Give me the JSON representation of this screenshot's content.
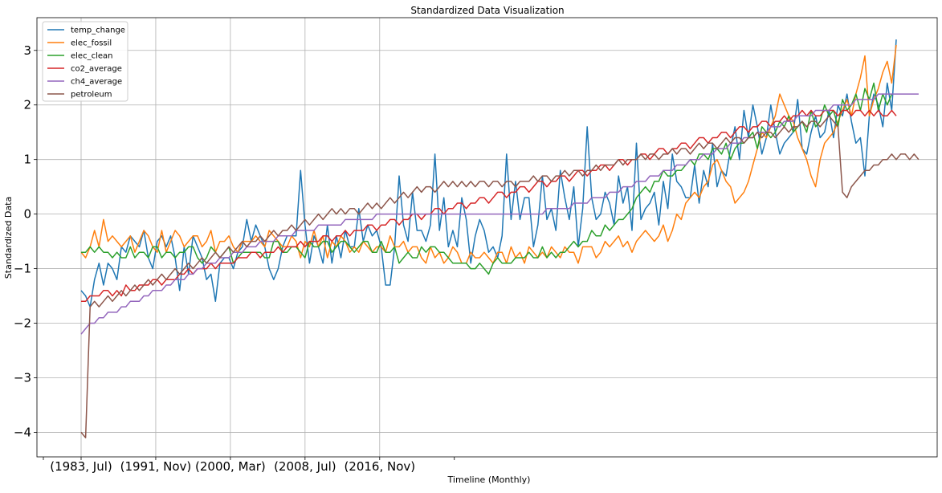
{
  "chart_data": {
    "type": "line",
    "title": "Standardized Data Visualization",
    "xlabel": "Timeline (Monthly)",
    "ylabel": "Standardized Data",
    "x_start": "1983, Jul",
    "x_end": "2023, Jul",
    "x_step_months": 6,
    "xtick_labels": [
      "(1983, Jul)",
      "(1991, Nov)",
      "(2000, Mar)",
      "(2008, Jul)",
      "(2016, Nov)"
    ],
    "yticks": [
      -4,
      -3,
      -2,
      -1,
      0,
      1,
      2,
      3
    ],
    "ytick_labels": [
      "−4",
      "−3",
      "−2",
      "−1",
      "0",
      "1",
      "2",
      "3"
    ],
    "ylim": [
      -4.45,
      3.6
    ],
    "grid": true,
    "legend_position": "top-left",
    "series": [
      {
        "name": "temp_change",
        "color": "#1f77b4",
        "values": [
          -1.4,
          -1.5,
          -1.7,
          -1.2,
          -0.9,
          -1.3,
          -0.9,
          -1.0,
          -1.2,
          -0.6,
          -0.7,
          -0.4,
          -0.5,
          -0.6,
          -0.3,
          -0.8,
          -1.0,
          -0.5,
          -0.4,
          -0.6,
          -0.4,
          -0.8,
          -1.4,
          -0.6,
          -1.1,
          -0.4,
          -0.6,
          -0.8,
          -1.2,
          -1.1,
          -1.6,
          -0.9,
          -0.8,
          -0.8,
          -1.0,
          -0.7,
          -0.6,
          -0.1,
          -0.5,
          -0.2,
          -0.4,
          -0.6,
          -1.0,
          -1.2,
          -1.0,
          -0.6,
          -0.4,
          -0.4,
          -0.4,
          0.8,
          -0.2,
          -0.9,
          -0.4,
          -0.6,
          -0.9,
          -0.2,
          -0.9,
          -0.4,
          -0.8,
          -0.3,
          -0.6,
          -0.6,
          0.1,
          -0.5,
          -0.2,
          -0.4,
          -0.3,
          -0.6,
          -1.3,
          -1.3,
          -0.6,
          0.7,
          -0.2,
          -0.5,
          0.4,
          -0.3,
          -0.3,
          -0.5,
          -0.2,
          1.1,
          -0.3,
          0.3,
          -0.6,
          -0.3,
          -0.6,
          0.3,
          -0.1,
          -0.9,
          -0.4,
          -0.1,
          -0.3,
          -0.7,
          -0.6,
          -0.8,
          -0.4,
          1.1,
          -0.1,
          0.6,
          -0.1,
          0.3,
          0.3,
          -0.6,
          -0.2,
          0.7,
          -0.1,
          0.1,
          -0.3,
          0.8,
          0.3,
          -0.1,
          0.5,
          -0.6,
          0.1,
          1.6,
          0.3,
          -0.1,
          0.0,
          0.4,
          0.2,
          -0.2,
          0.7,
          0.2,
          0.5,
          -0.3,
          1.3,
          -0.1,
          0.1,
          0.2,
          0.4,
          -0.2,
          0.6,
          0.1,
          1.1,
          0.6,
          0.5,
          0.3,
          0.3,
          0.9,
          0.2,
          0.8,
          0.5,
          1.3,
          0.5,
          0.8,
          0.7,
          1.2,
          1.6,
          1.0,
          1.9,
          1.4,
          2.0,
          1.6,
          1.1,
          1.4,
          2.0,
          1.5,
          1.1,
          1.3,
          1.4,
          1.5,
          2.1,
          1.2,
          1.1,
          1.5,
          1.8,
          1.4,
          1.5,
          1.9,
          1.4,
          2.0,
          1.8,
          2.2,
          1.7,
          1.3,
          1.4,
          0.7,
          1.8,
          2.2,
          2.0,
          1.6,
          2.4,
          1.9,
          3.2
        ]
      },
      {
        "name": "elec_fossil",
        "color": "#ff7f0e",
        "values": [
          -0.7,
          -0.8,
          -0.6,
          -0.3,
          -0.6,
          -0.1,
          -0.5,
          -0.4,
          -0.5,
          -0.6,
          -0.5,
          -0.4,
          -0.7,
          -0.5,
          -0.3,
          -0.4,
          -0.6,
          -0.7,
          -0.3,
          -0.7,
          -0.5,
          -0.3,
          -0.4,
          -0.6,
          -0.5,
          -0.4,
          -0.4,
          -0.6,
          -0.5,
          -0.3,
          -0.7,
          -0.5,
          -0.5,
          -0.4,
          -0.6,
          -0.7,
          -0.5,
          -0.5,
          -0.5,
          -0.4,
          -0.5,
          -0.6,
          -0.3,
          -0.4,
          -0.5,
          -0.6,
          -0.6,
          -0.4,
          -0.5,
          -0.8,
          -0.5,
          -0.6,
          -0.3,
          -0.6,
          -0.4,
          -0.8,
          -0.5,
          -0.6,
          -0.4,
          -0.5,
          -0.7,
          -0.6,
          -0.7,
          -0.5,
          -0.6,
          -0.7,
          -0.6,
          -0.6,
          -0.7,
          -0.4,
          -0.6,
          -0.6,
          -0.5,
          -0.7,
          -0.6,
          -0.6,
          -0.8,
          -0.9,
          -0.6,
          -0.8,
          -0.7,
          -0.9,
          -0.8,
          -0.6,
          -0.7,
          -0.9,
          -0.9,
          -0.7,
          -0.8,
          -0.8,
          -0.7,
          -0.8,
          -0.9,
          -0.7,
          -0.7,
          -0.9,
          -0.6,
          -0.8,
          -0.7,
          -0.9,
          -0.6,
          -0.7,
          -0.8,
          -0.7,
          -0.8,
          -0.6,
          -0.7,
          -0.8,
          -0.6,
          -0.7,
          -0.7,
          -0.9,
          -0.6,
          -0.6,
          -0.6,
          -0.8,
          -0.7,
          -0.5,
          -0.6,
          -0.5,
          -0.4,
          -0.6,
          -0.5,
          -0.7,
          -0.5,
          -0.4,
          -0.3,
          -0.4,
          -0.5,
          -0.4,
          -0.2,
          -0.5,
          -0.3,
          0.0,
          -0.1,
          0.2,
          0.3,
          0.4,
          0.3,
          0.5,
          0.6,
          0.9,
          1.0,
          0.8,
          0.6,
          0.5,
          0.2,
          0.3,
          0.4,
          0.6,
          0.9,
          1.2,
          1.5,
          1.4,
          1.6,
          1.8,
          2.2,
          2.0,
          1.8,
          1.7,
          1.4,
          1.2,
          1.0,
          0.7,
          0.5,
          1.0,
          1.3,
          1.4,
          1.5,
          1.7,
          1.9,
          2.1,
          1.8,
          2.2,
          2.5,
          2.9,
          1.8,
          2.1,
          2.3,
          2.6,
          2.8,
          2.4,
          3.1
        ]
      },
      {
        "name": "elec_clean",
        "color": "#2ca02c",
        "values": [
          -0.7,
          -0.7,
          -0.6,
          -0.7,
          -0.6,
          -0.7,
          -0.7,
          -0.8,
          -0.7,
          -0.8,
          -0.8,
          -0.6,
          -0.8,
          -0.7,
          -0.7,
          -0.8,
          -0.6,
          -0.6,
          -0.8,
          -0.7,
          -0.7,
          -0.8,
          -0.7,
          -0.7,
          -0.6,
          -0.6,
          -0.8,
          -0.9,
          -0.8,
          -0.6,
          -0.7,
          -0.8,
          -0.7,
          -0.6,
          -0.9,
          -0.8,
          -0.7,
          -0.7,
          -0.7,
          -0.7,
          -0.7,
          -0.8,
          -0.8,
          -0.5,
          -0.5,
          -0.7,
          -0.7,
          -0.6,
          -0.6,
          -0.7,
          -0.8,
          -0.5,
          -0.6,
          -0.6,
          -0.5,
          -0.5,
          -0.7,
          -0.6,
          -0.5,
          -0.5,
          -0.6,
          -0.7,
          -0.6,
          -0.5,
          -0.5,
          -0.7,
          -0.7,
          -0.5,
          -0.7,
          -0.7,
          -0.6,
          -0.9,
          -0.8,
          -0.7,
          -0.8,
          -0.8,
          -0.6,
          -0.7,
          -0.6,
          -0.6,
          -0.7,
          -0.7,
          -0.8,
          -0.9,
          -0.9,
          -0.9,
          -0.9,
          -1.0,
          -1.0,
          -0.9,
          -1.0,
          -1.1,
          -0.9,
          -0.8,
          -0.9,
          -0.9,
          -0.9,
          -0.8,
          -0.8,
          -0.8,
          -0.7,
          -0.8,
          -0.8,
          -0.6,
          -0.8,
          -0.7,
          -0.8,
          -0.7,
          -0.7,
          -0.6,
          -0.5,
          -0.6,
          -0.5,
          -0.5,
          -0.3,
          -0.4,
          -0.4,
          -0.2,
          -0.3,
          -0.2,
          -0.1,
          -0.1,
          0.0,
          0.1,
          0.3,
          0.4,
          0.5,
          0.4,
          0.6,
          0.6,
          0.8,
          0.7,
          0.7,
          0.8,
          0.8,
          0.9,
          1.0,
          0.9,
          1.1,
          1.1,
          1.0,
          1.2,
          1.2,
          1.1,
          1.3,
          1.0,
          1.2,
          1.3,
          1.3,
          1.4,
          1.5,
          1.2,
          1.6,
          1.5,
          1.4,
          1.5,
          1.7,
          1.6,
          1.8,
          1.5,
          1.6,
          1.7,
          1.5,
          1.9,
          1.6,
          1.7,
          2.0,
          1.8,
          1.9,
          1.6,
          2.1,
          1.9,
          2.0,
          2.2,
          1.9,
          2.3,
          2.1,
          2.4,
          1.9,
          2.2,
          2.0,
          2.2
        ]
      },
      {
        "name": "co2_average",
        "color": "#d62728",
        "values": [
          -1.6,
          -1.6,
          -1.5,
          -1.5,
          -1.5,
          -1.4,
          -1.4,
          -1.5,
          -1.4,
          -1.5,
          -1.3,
          -1.4,
          -1.4,
          -1.3,
          -1.3,
          -1.3,
          -1.2,
          -1.2,
          -1.3,
          -1.2,
          -1.2,
          -1.2,
          -1.1,
          -1.1,
          -1.0,
          -1.1,
          -1.0,
          -1.0,
          -1.0,
          -0.9,
          -1.0,
          -0.9,
          -0.9,
          -0.9,
          -0.9,
          -0.8,
          -0.8,
          -0.8,
          -0.7,
          -0.7,
          -0.8,
          -0.7,
          -0.7,
          -0.7,
          -0.6,
          -0.7,
          -0.6,
          -0.6,
          -0.6,
          -0.5,
          -0.6,
          -0.5,
          -0.5,
          -0.5,
          -0.4,
          -0.4,
          -0.5,
          -0.4,
          -0.4,
          -0.3,
          -0.4,
          -0.3,
          -0.3,
          -0.3,
          -0.2,
          -0.2,
          -0.3,
          -0.2,
          -0.2,
          -0.1,
          -0.1,
          -0.2,
          -0.1,
          -0.1,
          0.0,
          0.0,
          -0.1,
          0.0,
          0.0,
          0.1,
          0.1,
          0.0,
          0.1,
          0.1,
          0.2,
          0.2,
          0.1,
          0.2,
          0.2,
          0.3,
          0.3,
          0.2,
          0.3,
          0.4,
          0.4,
          0.3,
          0.4,
          0.4,
          0.5,
          0.5,
          0.4,
          0.5,
          0.6,
          0.6,
          0.5,
          0.6,
          0.6,
          0.7,
          0.7,
          0.6,
          0.7,
          0.8,
          0.8,
          0.7,
          0.8,
          0.8,
          0.9,
          0.9,
          0.8,
          0.9,
          1.0,
          1.0,
          0.9,
          1.0,
          1.0,
          1.1,
          1.1,
          1.0,
          1.1,
          1.2,
          1.2,
          1.1,
          1.2,
          1.2,
          1.3,
          1.3,
          1.2,
          1.3,
          1.4,
          1.4,
          1.3,
          1.4,
          1.4,
          1.5,
          1.5,
          1.4,
          1.5,
          1.6,
          1.6,
          1.5,
          1.6,
          1.6,
          1.7,
          1.7,
          1.6,
          1.7,
          1.7,
          1.8,
          1.7,
          1.8,
          1.8,
          1.9,
          1.8,
          1.9,
          1.8,
          1.8,
          1.9,
          1.9,
          1.9,
          1.8,
          1.9,
          1.9,
          1.8,
          1.9,
          1.9,
          1.8,
          1.9,
          1.8,
          1.9,
          1.8,
          1.8,
          1.9,
          1.8
        ]
      },
      {
        "name": "ch4_average",
        "color": "#9467bd",
        "values": [
          -2.2,
          -2.1,
          -2.0,
          -2.0,
          -1.9,
          -1.9,
          -1.8,
          -1.8,
          -1.8,
          -1.7,
          -1.7,
          -1.6,
          -1.6,
          -1.6,
          -1.5,
          -1.5,
          -1.4,
          -1.4,
          -1.4,
          -1.3,
          -1.3,
          -1.2,
          -1.2,
          -1.2,
          -1.1,
          -1.1,
          -1.0,
          -1.0,
          -0.9,
          -0.9,
          -0.9,
          -0.8,
          -0.8,
          -0.8,
          -0.7,
          -0.7,
          -0.7,
          -0.6,
          -0.6,
          -0.6,
          -0.5,
          -0.5,
          -0.5,
          -0.5,
          -0.4,
          -0.4,
          -0.4,
          -0.4,
          -0.3,
          -0.3,
          -0.3,
          -0.3,
          -0.3,
          -0.2,
          -0.2,
          -0.2,
          -0.2,
          -0.2,
          -0.2,
          -0.1,
          -0.1,
          -0.1,
          -0.1,
          -0.1,
          -0.1,
          -0.1,
          0.0,
          0.0,
          0.0,
          0.0,
          0.0,
          0.0,
          0.0,
          0.0,
          0.0,
          0.0,
          0.0,
          0.0,
          0.0,
          0.0,
          0.0,
          0.0,
          0.0,
          0.0,
          0.0,
          0.0,
          0.0,
          0.0,
          0.0,
          0.0,
          0.0,
          0.0,
          0.0,
          0.0,
          0.0,
          0.0,
          0.0,
          0.0,
          0.0,
          0.0,
          0.0,
          0.0,
          0.0,
          0.0,
          0.1,
          0.1,
          0.1,
          0.1,
          0.1,
          0.1,
          0.2,
          0.2,
          0.2,
          0.2,
          0.3,
          0.3,
          0.3,
          0.3,
          0.4,
          0.4,
          0.4,
          0.5,
          0.5,
          0.5,
          0.6,
          0.6,
          0.6,
          0.7,
          0.7,
          0.7,
          0.8,
          0.8,
          0.8,
          0.9,
          0.9,
          0.9,
          1.0,
          1.0,
          1.0,
          1.1,
          1.1,
          1.1,
          1.2,
          1.2,
          1.2,
          1.3,
          1.3,
          1.3,
          1.4,
          1.4,
          1.4,
          1.5,
          1.5,
          1.5,
          1.6,
          1.6,
          1.6,
          1.7,
          1.7,
          1.7,
          1.8,
          1.8,
          1.8,
          1.8,
          1.9,
          1.9,
          1.9,
          1.9,
          2.0,
          2.0,
          2.0,
          2.0,
          2.0,
          2.1,
          2.1,
          2.1,
          2.1,
          2.1,
          2.2,
          2.2,
          2.2,
          2.2,
          2.2,
          2.2,
          2.2,
          2.2,
          2.2,
          2.2
        ]
      },
      {
        "name": "petroleum",
        "color": "#8c564b",
        "values": [
          -4.0,
          -4.1,
          -1.7,
          -1.6,
          -1.7,
          -1.6,
          -1.5,
          -1.6,
          -1.5,
          -1.4,
          -1.5,
          -1.4,
          -1.3,
          -1.4,
          -1.3,
          -1.2,
          -1.3,
          -1.2,
          -1.1,
          -1.2,
          -1.1,
          -1.0,
          -1.1,
          -1.0,
          -0.9,
          -1.0,
          -0.9,
          -0.8,
          -0.9,
          -0.8,
          -0.7,
          -0.8,
          -0.7,
          -0.6,
          -0.7,
          -0.6,
          -0.5,
          -0.6,
          -0.5,
          -0.5,
          -0.4,
          -0.5,
          -0.4,
          -0.3,
          -0.4,
          -0.3,
          -0.3,
          -0.2,
          -0.3,
          -0.2,
          -0.1,
          -0.2,
          -0.1,
          0.0,
          -0.1,
          0.0,
          0.1,
          0.0,
          0.1,
          0.0,
          0.1,
          0.1,
          0.0,
          0.1,
          0.2,
          0.1,
          0.2,
          0.1,
          0.2,
          0.3,
          0.2,
          0.3,
          0.4,
          0.3,
          0.4,
          0.5,
          0.4,
          0.5,
          0.5,
          0.4,
          0.5,
          0.6,
          0.5,
          0.6,
          0.5,
          0.6,
          0.5,
          0.6,
          0.5,
          0.6,
          0.6,
          0.5,
          0.6,
          0.6,
          0.5,
          0.6,
          0.6,
          0.5,
          0.6,
          0.6,
          0.6,
          0.7,
          0.6,
          0.7,
          0.7,
          0.6,
          0.7,
          0.7,
          0.8,
          0.7,
          0.8,
          0.8,
          0.7,
          0.8,
          0.8,
          0.9,
          0.8,
          0.9,
          0.9,
          0.9,
          1.0,
          0.9,
          1.0,
          1.0,
          1.0,
          1.1,
          1.0,
          1.1,
          1.1,
          1.0,
          1.1,
          1.1,
          1.2,
          1.1,
          1.2,
          1.2,
          1.1,
          1.2,
          1.3,
          1.2,
          1.3,
          1.3,
          1.2,
          1.3,
          1.4,
          1.3,
          1.4,
          1.4,
          1.3,
          1.4,
          1.4,
          1.5,
          1.4,
          1.5,
          1.5,
          1.4,
          1.5,
          1.6,
          1.5,
          1.6,
          1.6,
          1.7,
          1.6,
          1.7,
          1.7,
          1.6,
          1.7,
          1.8,
          1.7,
          1.6,
          0.4,
          0.3,
          0.5,
          0.6,
          0.7,
          0.8,
          0.8,
          0.9,
          0.9,
          1.0,
          1.0,
          1.1,
          1.0,
          1.1,
          1.1,
          1.0,
          1.1,
          1.0
        ]
      }
    ]
  }
}
